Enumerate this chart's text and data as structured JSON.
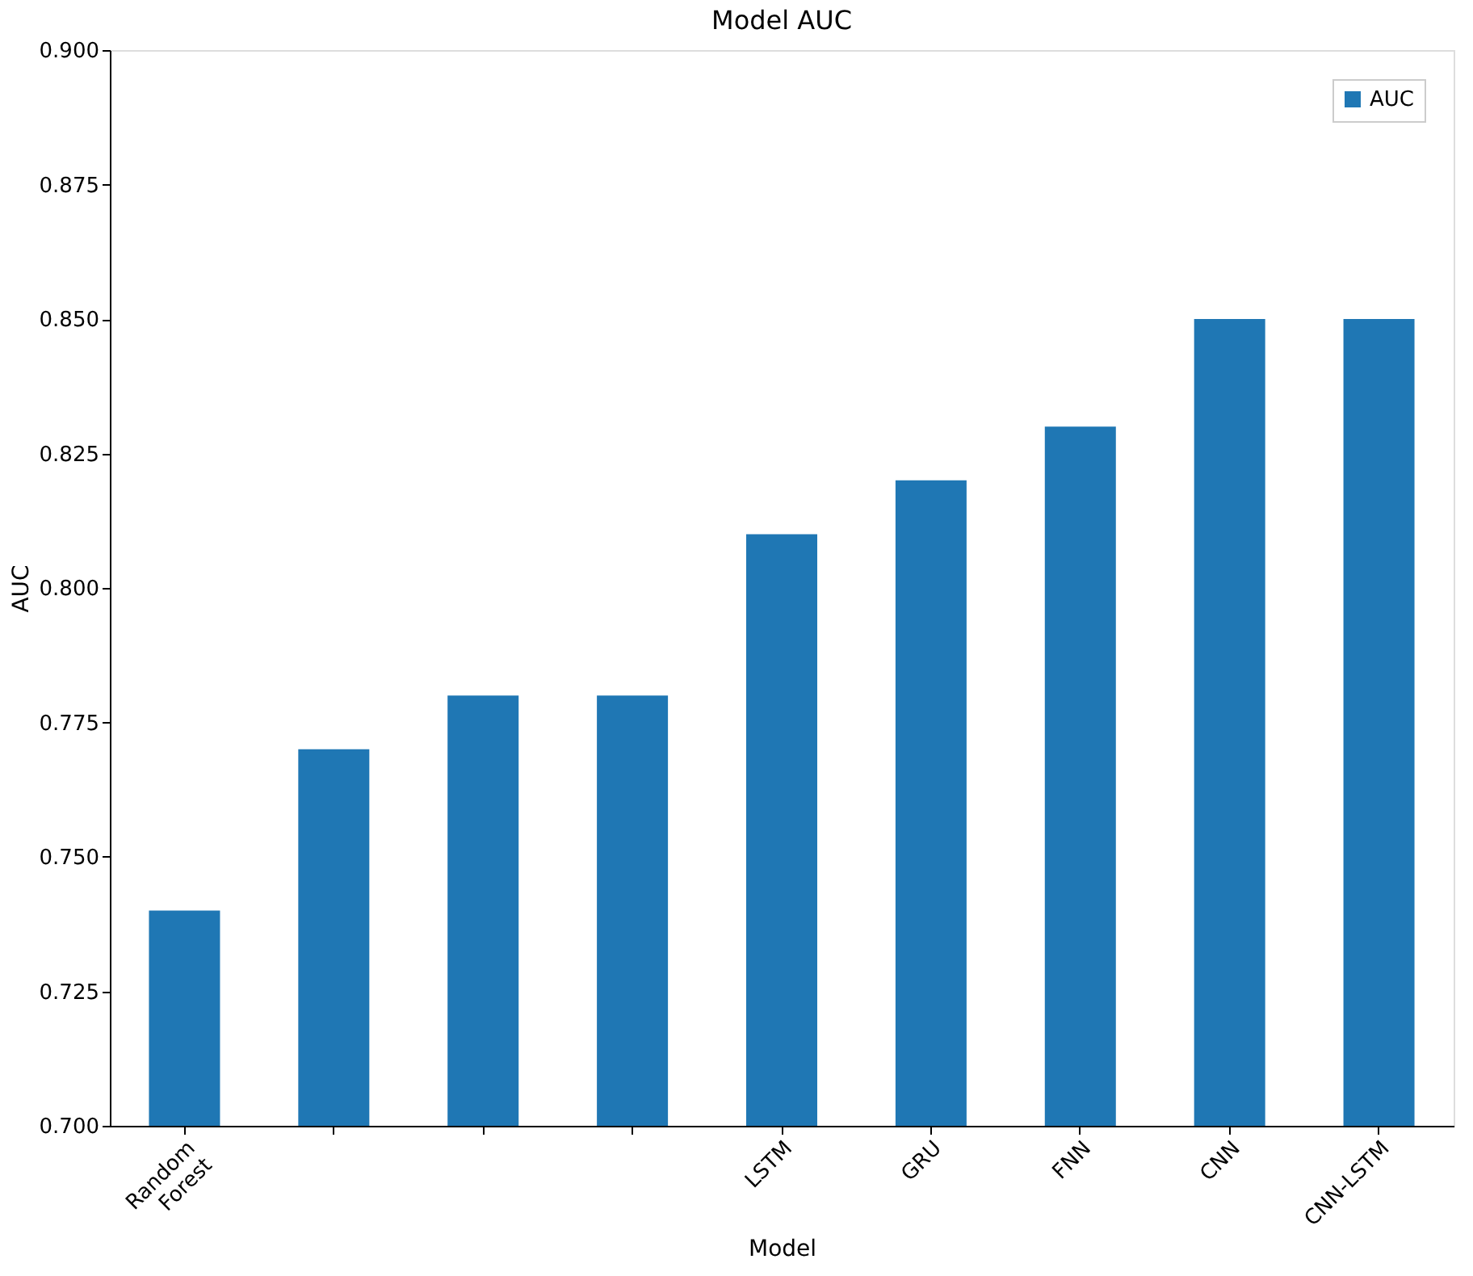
{
  "chart_data": {
    "type": "bar",
    "title": "Model AUC",
    "xlabel": "Model",
    "ylabel": "AUC",
    "categories": [
      "Random Forest",
      null,
      null,
      null,
      "LSTM",
      "GRU",
      "FNN",
      "CNN",
      "CNN-LSTM"
    ],
    "series": [
      {
        "name": "AUC",
        "color": "#1f77b4",
        "values": [
          0.74,
          0.77,
          0.78,
          0.78,
          0.81,
          0.82,
          0.83,
          0.85,
          0.85
        ]
      }
    ],
    "ylim": [
      0.7,
      0.9
    ],
    "yticks": [
      {
        "value": 0.7,
        "label": "0.700"
      },
      0.725,
      {
        "value": 0.75,
        "label": "0.750"
      },
      0.775,
      {
        "value": 0.8,
        "label": "0.800"
      },
      0.825,
      {
        "value": 0.85,
        "label": "0.850"
      },
      0.875,
      {
        "value": 0.9,
        "label": "0.900"
      }
    ],
    "grid": false,
    "legend": "top right"
  }
}
